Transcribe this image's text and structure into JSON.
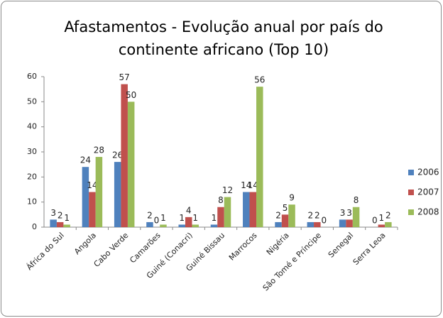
{
  "chart_data": {
    "type": "bar",
    "title": "Afastamentos - Evolução anual por país do continente africano (Top 10)",
    "categories": [
      "África do Sul",
      "Angola",
      "Cabo Verde",
      "Camarões",
      "Guiné (Conacri)",
      "Guiné Bissau",
      "Marrocos",
      "Nigéria",
      "São Tomé e Príncipe",
      "Senegal",
      "Serra Leoa"
    ],
    "series": [
      {
        "name": "2006",
        "color": "#4f81bd",
        "values": [
          3,
          24,
          26,
          2,
          1,
          1,
          14,
          2,
          2,
          3,
          0
        ]
      },
      {
        "name": "2007",
        "color": "#c0504d",
        "values": [
          2,
          14,
          57,
          0,
          4,
          8,
          14,
          5,
          2,
          3,
          1
        ]
      },
      {
        "name": "2008",
        "color": "#9bbb59",
        "values": [
          1,
          28,
          50,
          1,
          1,
          12,
          56,
          9,
          0,
          8,
          2
        ]
      }
    ],
    "ylim": [
      0,
      60
    ],
    "yticks": [
      0,
      10,
      20,
      30,
      40,
      50,
      60
    ],
    "grid": false,
    "legend": "right"
  }
}
